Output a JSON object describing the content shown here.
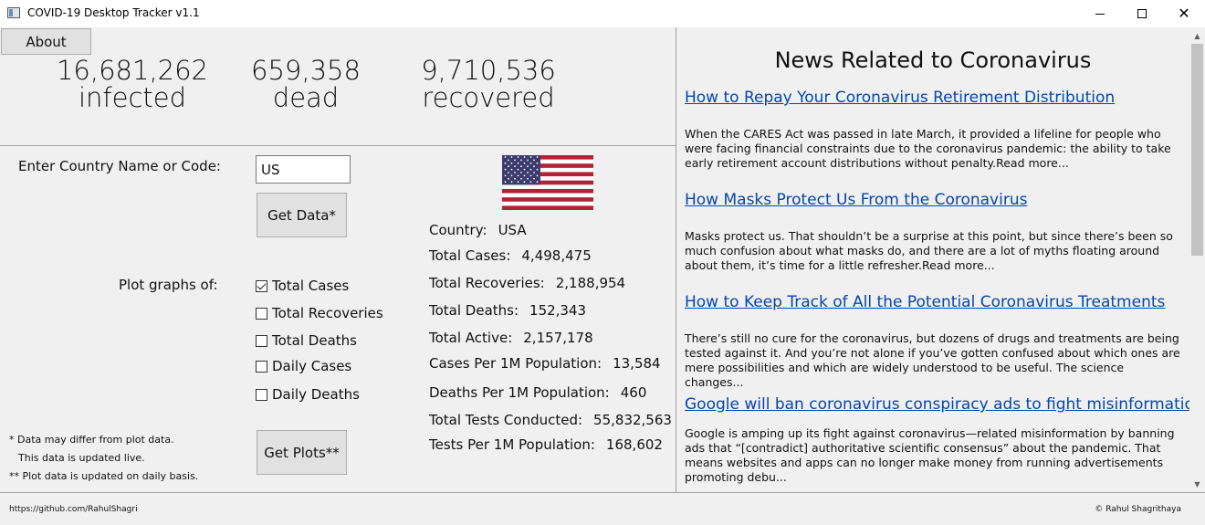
{
  "window": {
    "title": "COVID-19 Desktop Tracker v1.1"
  },
  "toolbar": {
    "about_label": "About"
  },
  "global_stats": {
    "infected_value": "16,681,262",
    "infected_label": "infected",
    "dead_value": "659,358",
    "dead_label": "dead",
    "recovered_value": "9,710,536",
    "recovered_label": "recovered"
  },
  "country_form": {
    "label": "Enter Country Name or Code:",
    "input_value": "US",
    "get_data_label": "Get Data*"
  },
  "plots": {
    "label": "Plot graphs of:",
    "options": [
      {
        "label": "Total Cases",
        "checked": true
      },
      {
        "label": "Total Recoveries",
        "checked": false
      },
      {
        "label": "Total Deaths",
        "checked": false
      },
      {
        "label": "Daily Cases",
        "checked": false
      },
      {
        "label": "Daily Deaths",
        "checked": false
      }
    ],
    "get_plots_label": "Get Plots**"
  },
  "notes": [
    "*  Data may differ from plot data.",
    "This data is updated live.",
    "** Plot data is updated on daily basis."
  ],
  "country_data": {
    "flag": "us-flag-icon",
    "rows": [
      {
        "label": "Country:",
        "value": "USA"
      },
      {
        "label": "Total Cases:",
        "value": "4,498,475"
      },
      {
        "label": "Total Recoveries:",
        "value": "2,188,954"
      },
      {
        "label": "Total Deaths:",
        "value": "152,343"
      },
      {
        "label": "Total Active:",
        "value": "2,157,178"
      },
      {
        "label": "Cases Per 1M Population:",
        "value": "13,584"
      },
      {
        "label": "Deaths Per 1M Population:",
        "value": "460"
      },
      {
        "label": "Total Tests Conducted:",
        "value": "55,832,563"
      },
      {
        "label": "Tests Per 1M Population:",
        "value": "168,602"
      }
    ]
  },
  "news": {
    "title": "News Related to Coronavirus",
    "items": [
      {
        "headline": "How to Repay Your Coronavirus Retirement Distribution",
        "summary": "When the CARES Act was passed in late March, it provided a lifeline for people who were facing financial constraints due to the coronavirus pandemic: the ability to take early retirement account distributions without penalty.Read more..."
      },
      {
        "headline": "How Masks Protect Us From the Coronavirus",
        "summary": "Masks protect us. That shouldn’t be a surprise at this point, but since there’s been so much confusion about what masks do, and there are a lot of myths floating around about them, it’s time for a little refresher.Read more..."
      },
      {
        "headline": "How to Keep Track of All the Potential Coronavirus Treatments",
        "summary": "There’s still no cure for the coronavirus, but dozens of drugs and treatments are being tested against it. And you’re not alone if you’ve gotten confused about which ones are mere possibilities and which are widely understood to be useful. The science changes..."
      },
      {
        "headline": "Google will ban coronavirus conspiracy ads to fight misinformation",
        "summary": "Google is amping up its fight against coronavirus—related misinformation by banning ads that “[contradict] authoritative scientific consensus” about the pandemic. That means websites and apps can no longer make money from running advertisements promoting debu..."
      }
    ]
  },
  "footer": {
    "left": "https://github.com/RahulShagri",
    "right": "© Rahul Shagrithaya"
  },
  "colors": {
    "link": "#0645ad",
    "flag_red": "#b22234",
    "flag_blue": "#3c3b6e"
  }
}
